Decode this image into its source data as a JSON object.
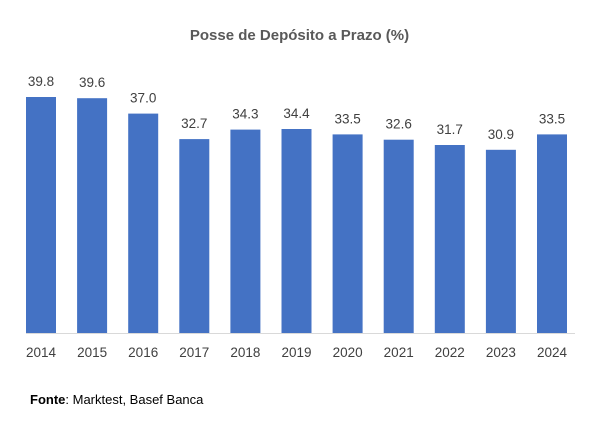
{
  "chart_data": {
    "type": "bar",
    "title": "Posse de Depósito a Prazo (%)",
    "categories": [
      "2014",
      "2015",
      "2016",
      "2017",
      "2018",
      "2019",
      "2020",
      "2021",
      "2022",
      "2023",
      "2024"
    ],
    "values": [
      39.8,
      39.6,
      37.0,
      32.7,
      34.3,
      34.4,
      33.5,
      32.6,
      31.7,
      30.9,
      33.5
    ],
    "value_labels": [
      "39.8",
      "39.6",
      "37.0",
      "32.7",
      "34.3",
      "34.4",
      "33.5",
      "32.6",
      "31.7",
      "30.9",
      "33.5"
    ],
    "ylim": [
      0,
      40
    ],
    "xlabel": "",
    "ylabel": "",
    "grid": false,
    "legend": "none",
    "bar_color": "#4472C4"
  },
  "source": {
    "label": "Fonte",
    "text": ": Marktest, Basef Banca"
  }
}
